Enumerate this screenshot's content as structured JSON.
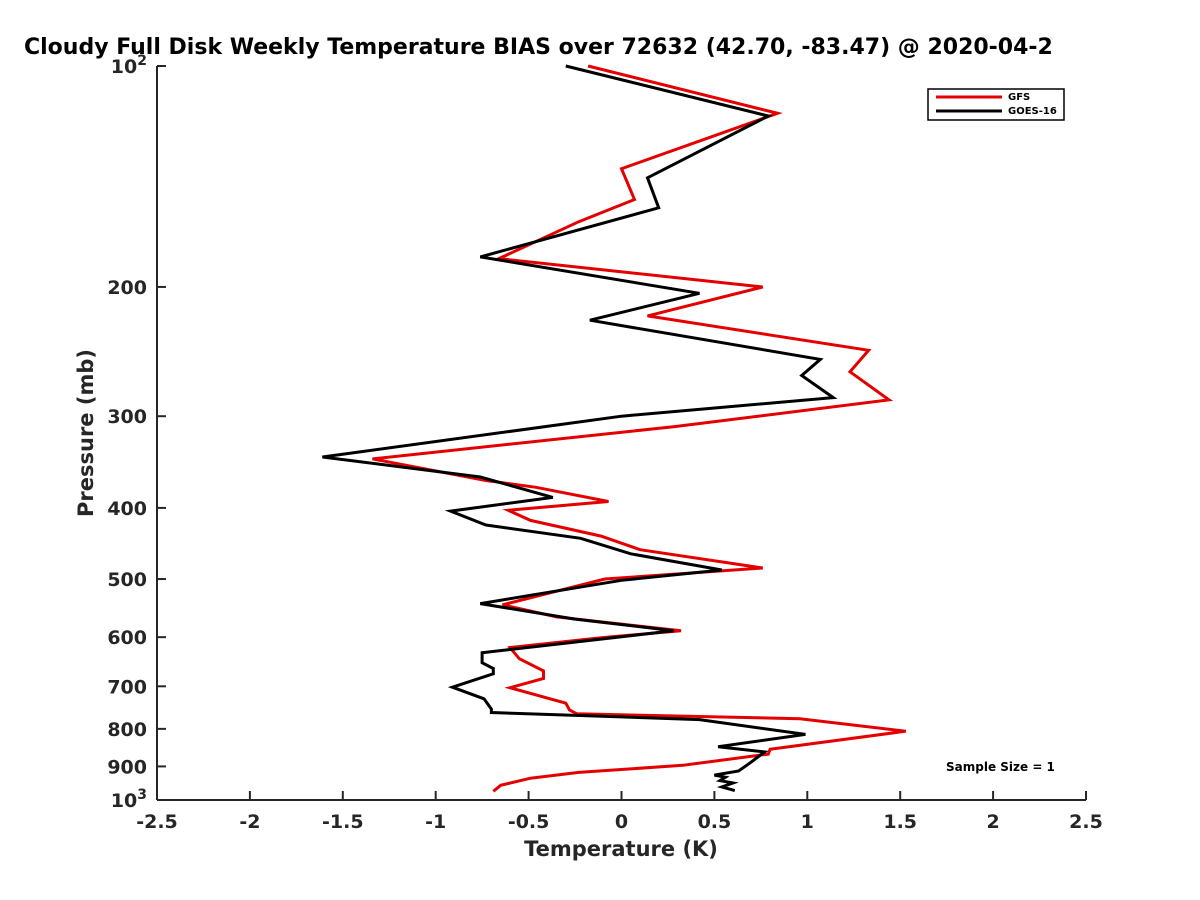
{
  "chart_data": {
    "type": "line",
    "title": "Cloudy Full Disk Weekly Temperature BIAS over 72632 (42.70, -83.47) @ 2020-04-2",
    "xlabel": "Temperature (K)",
    "ylabel": "Pressure (mb)",
    "xlim": [
      -2.5,
      2.5
    ],
    "ylim": [
      100,
      1000
    ],
    "y_scale": "log",
    "y_reversed": true,
    "x_ticks": [
      {
        "value": -2.5,
        "label": "-2.5"
      },
      {
        "value": -2,
        "label": "-2"
      },
      {
        "value": -1.5,
        "label": "-1.5"
      },
      {
        "value": -1,
        "label": "-1"
      },
      {
        "value": -0.5,
        "label": "-0.5"
      },
      {
        "value": 0,
        "label": "0"
      },
      {
        "value": 0.5,
        "label": "0.5"
      },
      {
        "value": 1,
        "label": "1"
      },
      {
        "value": 1.5,
        "label": "1.5"
      },
      {
        "value": 2,
        "label": "2"
      },
      {
        "value": 2.5,
        "label": "2.5"
      }
    ],
    "y_ticks": [
      {
        "value": 100,
        "label": "10",
        "sup": "2"
      },
      {
        "value": 200,
        "label": "200",
        "sup": ""
      },
      {
        "value": 300,
        "label": "300",
        "sup": ""
      },
      {
        "value": 400,
        "label": "400",
        "sup": ""
      },
      {
        "value": 500,
        "label": "500",
        "sup": ""
      },
      {
        "value": 600,
        "label": "600",
        "sup": ""
      },
      {
        "value": 700,
        "label": "700",
        "sup": ""
      },
      {
        "value": 800,
        "label": "800",
        "sup": ""
      },
      {
        "value": 900,
        "label": "900",
        "sup": ""
      },
      {
        "value": 1000,
        "label": "10",
        "sup": "3"
      }
    ],
    "grid": false,
    "legend_position": "top-right",
    "annotation": "Sample Size = 1",
    "series": [
      {
        "name": "GFS",
        "color": "#e50000",
        "points": [
          {
            "x": -0.18,
            "y": 100
          },
          {
            "x": 0.84,
            "y": 116
          },
          {
            "x": 0.0,
            "y": 138
          },
          {
            "x": 0.07,
            "y": 152
          },
          {
            "x": -0.23,
            "y": 163
          },
          {
            "x": -0.66,
            "y": 183
          },
          {
            "x": 0.76,
            "y": 200
          },
          {
            "x": 0.14,
            "y": 219
          },
          {
            "x": 1.33,
            "y": 244
          },
          {
            "x": 1.23,
            "y": 261
          },
          {
            "x": 1.44,
            "y": 285
          },
          {
            "x": 0.28,
            "y": 310
          },
          {
            "x": -1.34,
            "y": 343
          },
          {
            "x": -0.73,
            "y": 367
          },
          {
            "x": -0.46,
            "y": 375
          },
          {
            "x": -0.07,
            "y": 392
          },
          {
            "x": -0.61,
            "y": 403
          },
          {
            "x": -0.49,
            "y": 416
          },
          {
            "x": -0.11,
            "y": 437
          },
          {
            "x": 0.1,
            "y": 456
          },
          {
            "x": 0.76,
            "y": 483
          },
          {
            "x": -0.09,
            "y": 500
          },
          {
            "x": -0.64,
            "y": 542
          },
          {
            "x": -0.35,
            "y": 563
          },
          {
            "x": 0.32,
            "y": 588
          },
          {
            "x": -0.11,
            "y": 601
          },
          {
            "x": -0.6,
            "y": 620
          },
          {
            "x": -0.55,
            "y": 642
          },
          {
            "x": -0.42,
            "y": 667
          },
          {
            "x": -0.42,
            "y": 683
          },
          {
            "x": -0.6,
            "y": 703
          },
          {
            "x": -0.3,
            "y": 738
          },
          {
            "x": -0.28,
            "y": 754
          },
          {
            "x": -0.24,
            "y": 763
          },
          {
            "x": 0.96,
            "y": 775
          },
          {
            "x": 1.53,
            "y": 806
          },
          {
            "x": 0.8,
            "y": 853
          },
          {
            "x": 0.79,
            "y": 866
          },
          {
            "x": 0.33,
            "y": 897
          },
          {
            "x": -0.23,
            "y": 917
          },
          {
            "x": -0.49,
            "y": 934
          },
          {
            "x": -0.65,
            "y": 955
          },
          {
            "x": -0.69,
            "y": 973
          }
        ]
      },
      {
        "name": "GOES-16",
        "color": "#000000",
        "points": [
          {
            "x": -0.3,
            "y": 100
          },
          {
            "x": 0.79,
            "y": 117
          },
          {
            "x": 0.14,
            "y": 142
          },
          {
            "x": 0.2,
            "y": 156
          },
          {
            "x": -0.76,
            "y": 182
          },
          {
            "x": 0.42,
            "y": 204
          },
          {
            "x": -0.17,
            "y": 222
          },
          {
            "x": 1.07,
            "y": 251
          },
          {
            "x": 0.97,
            "y": 264
          },
          {
            "x": 1.14,
            "y": 283
          },
          {
            "x": 0.0,
            "y": 300
          },
          {
            "x": -1.61,
            "y": 341
          },
          {
            "x": -0.76,
            "y": 363
          },
          {
            "x": -0.37,
            "y": 387
          },
          {
            "x": -0.92,
            "y": 404
          },
          {
            "x": -0.73,
            "y": 422
          },
          {
            "x": -0.22,
            "y": 440
          },
          {
            "x": 0.05,
            "y": 462
          },
          {
            "x": 0.54,
            "y": 486
          },
          {
            "x": 0.0,
            "y": 502
          },
          {
            "x": -0.76,
            "y": 540
          },
          {
            "x": -0.25,
            "y": 567
          },
          {
            "x": 0.28,
            "y": 588
          },
          {
            "x": -0.14,
            "y": 605
          },
          {
            "x": -0.75,
            "y": 630
          },
          {
            "x": -0.75,
            "y": 650
          },
          {
            "x": -0.69,
            "y": 662
          },
          {
            "x": -0.69,
            "y": 673
          },
          {
            "x": -0.91,
            "y": 702
          },
          {
            "x": -0.74,
            "y": 728
          },
          {
            "x": -0.7,
            "y": 752
          },
          {
            "x": -0.7,
            "y": 760
          },
          {
            "x": 0.42,
            "y": 777
          },
          {
            "x": 0.99,
            "y": 814
          },
          {
            "x": 0.52,
            "y": 846
          },
          {
            "x": 0.77,
            "y": 860
          },
          {
            "x": 0.69,
            "y": 891
          },
          {
            "x": 0.63,
            "y": 913
          },
          {
            "x": 0.5,
            "y": 925
          },
          {
            "x": 0.56,
            "y": 931
          },
          {
            "x": 0.53,
            "y": 941
          },
          {
            "x": 0.6,
            "y": 948
          },
          {
            "x": 0.54,
            "y": 960
          },
          {
            "x": 0.61,
            "y": 971
          }
        ]
      }
    ]
  }
}
